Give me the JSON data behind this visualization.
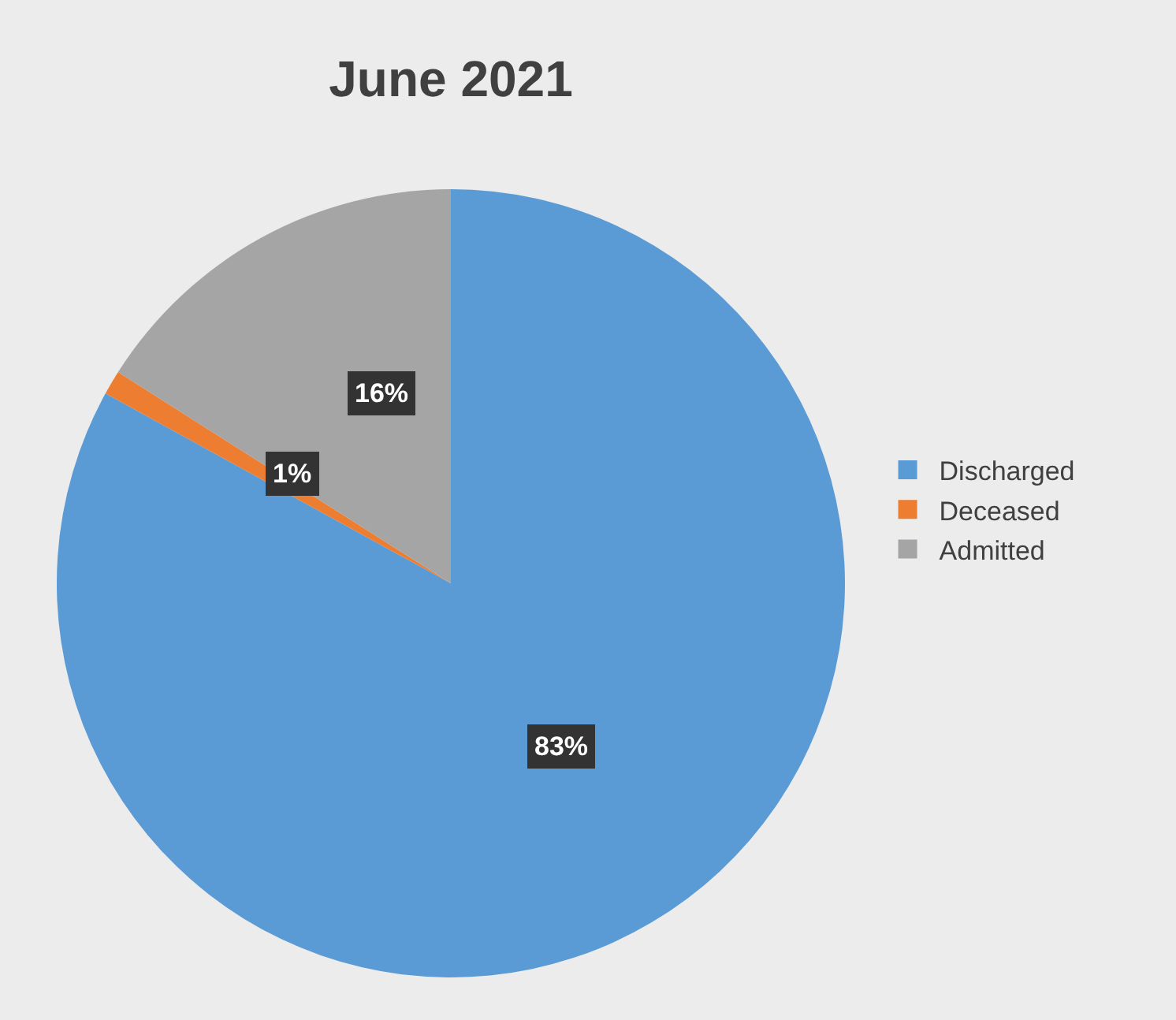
{
  "chart_data": {
    "type": "pie",
    "title": "June 2021",
    "categories": [
      "Discharged",
      "Deceased",
      "Admitted"
    ],
    "values": [
      83,
      1,
      16
    ],
    "colors": [
      "#5b9bd5",
      "#ed7d31",
      "#a5a5a5"
    ],
    "value_labels": [
      "83%",
      "1%",
      "16%"
    ],
    "legend": "right"
  }
}
